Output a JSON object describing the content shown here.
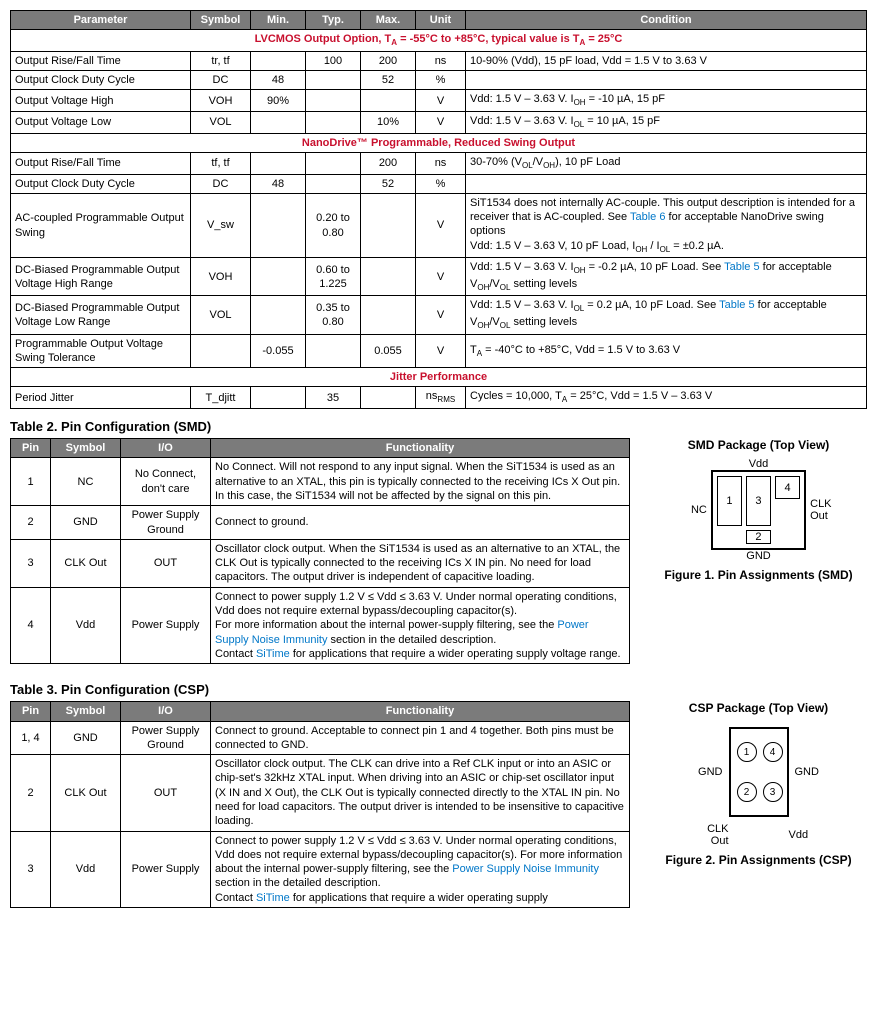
{
  "table1": {
    "headers": [
      "Parameter",
      "Symbol",
      "Min.",
      "Typ.",
      "Max.",
      "Unit",
      "Condition"
    ],
    "section1": "LVCMOS Output Option, T_A = -55°C to +85°C, typical value is T_A = 25°C",
    "s1_rows": [
      {
        "p": "Output Rise/Fall Time",
        "sym": "tr, tf",
        "min": "",
        "typ": "100",
        "max": "200",
        "unit": "ns",
        "cond": "10-90% (Vdd), 15 pF load, Vdd = 1.5 V to 3.63 V"
      },
      {
        "p": "Output Clock Duty Cycle",
        "sym": "DC",
        "min": "48",
        "typ": "",
        "max": "52",
        "unit": "%",
        "cond": ""
      },
      {
        "p": "Output Voltage High",
        "sym": "VOH",
        "min": "90%",
        "typ": "",
        "max": "",
        "unit": "V",
        "cond": "Vdd: 1.5 V – 3.63 V. I_OH = -10 µA, 15 pF"
      },
      {
        "p": "Output Voltage Low",
        "sym": "VOL",
        "min": "",
        "typ": "",
        "max": "10%",
        "unit": "V",
        "cond": "Vdd: 1.5 V – 3.63 V. I_OL = 10 µA, 15 pF"
      }
    ],
    "section2": "NanoDrive™ Programmable, Reduced Swing Output",
    "s2_rows": [
      {
        "p": "Output Rise/Fall Time",
        "sym": "tf, tf",
        "min": "",
        "typ": "",
        "max": "200",
        "unit": "ns",
        "cond": "30-70% (V_OL/V_OH), 10 pF Load"
      },
      {
        "p": "Output Clock Duty Cycle",
        "sym": "DC",
        "min": "48",
        "typ": "",
        "max": "52",
        "unit": "%",
        "cond": ""
      },
      {
        "p": "AC-coupled Programmable Output Swing",
        "sym": "V_sw",
        "min": "",
        "typ": "0.20 to 0.80",
        "max": "",
        "unit": "V",
        "cond": "SiT1534 does not internally AC-couple. This output description is intended for a receiver that is AC-coupled. See Table 6 for acceptable NanoDrive swing options\nVdd: 1.5 V – 3.63 V, 10 pF Load, I_OH / I_OL = ±0.2 µA.",
        "link": "Table 6"
      },
      {
        "p": "DC-Biased Programmable Output Voltage High Range",
        "sym": "VOH",
        "min": "",
        "typ": "0.60 to 1.225",
        "max": "",
        "unit": "V",
        "cond": "Vdd: 1.5 V – 3.63 V. I_OH = -0.2 µA, 10 pF Load. See Table 5 for acceptable V_OH/V_OL setting levels",
        "link": "Table 5"
      },
      {
        "p": "DC-Biased Programmable Output Voltage Low Range",
        "sym": "VOL",
        "min": "",
        "typ": "0.35 to 0.80",
        "max": "",
        "unit": "V",
        "cond": "Vdd: 1.5 V – 3.63 V. I_OL = 0.2 µA, 10 pF Load. See Table 5 for acceptable V_OH/V_OL setting levels",
        "link": "Table 5"
      },
      {
        "p": "Programmable Output Voltage Swing Tolerance",
        "sym": "",
        "min": "-0.055",
        "typ": "",
        "max": "0.055",
        "unit": "V",
        "cond": "T_A = -40°C to +85°C, Vdd = 1.5 V to 3.63 V"
      }
    ],
    "section3": "Jitter Performance",
    "s3_rows": [
      {
        "p": "Period Jitter",
        "sym": "T_djitt",
        "min": "",
        "typ": "35",
        "max": "",
        "unit": "ns_RMS",
        "cond": "Cycles = 10,000, T_A = 25°C, Vdd = 1.5 V – 3.63 V"
      }
    ]
  },
  "table2": {
    "title": "Table 2. Pin Configuration (SMD)",
    "headers": [
      "Pin",
      "Symbol",
      "I/O",
      "Functionality"
    ],
    "rows": [
      {
        "pin": "1",
        "sym": "NC",
        "io": "No Connect, don't care",
        "func": "No Connect. Will not respond to any input signal. When the SiT1534 is used as an alternative to an XTAL, this pin is typically connected to the receiving ICs X Out pin. In this case, the SiT1534 will not be affected by the signal on this pin."
      },
      {
        "pin": "2",
        "sym": "GND",
        "io": "Power Supply Ground",
        "func": "Connect to ground."
      },
      {
        "pin": "3",
        "sym": "CLK Out",
        "io": "OUT",
        "func": "Oscillator clock output. When the SiT1534 is used as an alternative to an XTAL, the CLK Out is typically connected to the receiving ICs X IN pin. No need for load capacitors. The output driver is independent of capacitive loading."
      },
      {
        "pin": "4",
        "sym": "Vdd",
        "io": "Power Supply",
        "func": "Connect to power supply 1.2 V ≤ Vdd ≤ 3.63 V. Under normal operating conditions, Vdd does not require external bypass/decoupling capacitor(s).\nFor more information about the internal power-supply filtering, see the Power Supply Noise Immunity section in the detailed description.\nContact SiTime for applications that require a wider operating supply voltage range.",
        "links": [
          "Power Supply Noise Immunity",
          "SiTime"
        ]
      }
    ]
  },
  "table3": {
    "title": "Table 3. Pin Configuration (CSP)",
    "headers": [
      "Pin",
      "Symbol",
      "I/O",
      "Functionality"
    ],
    "rows": [
      {
        "pin": "1, 4",
        "sym": "GND",
        "io": "Power Supply Ground",
        "func": "Connect to ground. Acceptable to connect pin 1 and 4 together. Both pins must be connected to GND."
      },
      {
        "pin": "2",
        "sym": "CLK Out",
        "io": "OUT",
        "func": "Oscillator clock output. The CLK can drive into a Ref CLK input or into an ASIC or chip-set's 32kHz XTAL input. When driving into an ASIC or chip-set oscillator input (X IN and X Out), the CLK Out is typically connected directly to the XTAL IN pin. No need for load capacitors. The output driver is intended to be insensitive to capacitive loading."
      },
      {
        "pin": "3",
        "sym": "Vdd",
        "io": "Power Supply",
        "func": "Connect to power supply 1.2 V ≤ Vdd ≤ 3.63 V. Under normal operating conditions, Vdd does not require external bypass/decoupling capacitor(s). For more information about the internal power-supply filtering, see the Power Supply Noise Immunity section in the detailed description.\nContact SiTime for applications that require a wider operating supply",
        "links": [
          "Power Supply Noise Immunity",
          "SiTime"
        ]
      }
    ]
  },
  "smd_fig": {
    "title": "SMD Package (Top View)",
    "top": "Vdd",
    "left": "NC",
    "right": "CLK Out",
    "bottom": "GND",
    "caption": "Figure 1. Pin Assignments (SMD)",
    "p1": "1",
    "p2": "2",
    "p3": "3",
    "p4": "4"
  },
  "csp_fig": {
    "title": "CSP Package (Top View)",
    "tl": "GND",
    "tr": "GND",
    "bl": "CLK Out",
    "br": "Vdd",
    "caption": "Figure 2. Pin Assignments (CSP)",
    "p1": "1",
    "p2": "2",
    "p3": "3",
    "p4": "4"
  }
}
